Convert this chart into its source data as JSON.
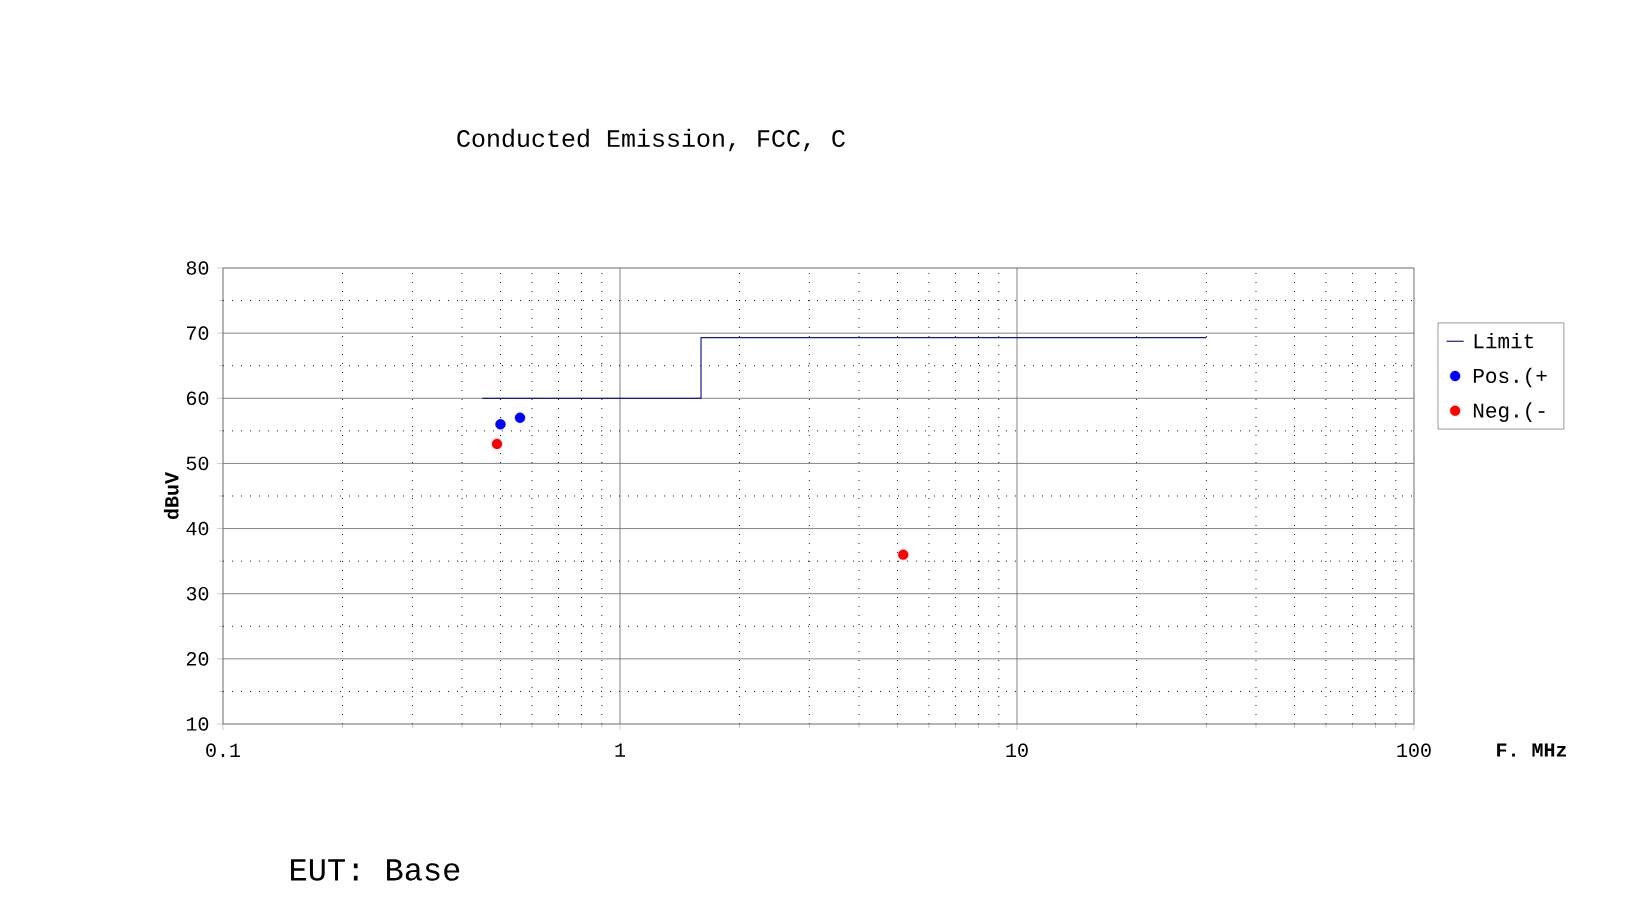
{
  "chart_data": {
    "type": "scatter",
    "title": "Conducted Emission, FCC, C",
    "xlabel": "F. MHz",
    "ylabel": "dBuV",
    "annotations": [
      "EUT: Base"
    ],
    "series": [
      {
        "name": "Limit",
        "type": "step",
        "color": "#1a1a8c",
        "x": [
          0.45,
          1.6,
          30
        ],
        "values": [
          60,
          69.3,
          69.3
        ],
        "marker": "none",
        "line_style": "solid"
      },
      {
        "name": "Pos.(+",
        "color": "#0000ff",
        "x": [
          0.5,
          0.56
        ],
        "values": [
          56,
          57
        ],
        "marker": "circle"
      },
      {
        "name": "Neg.(-",
        "color": "#ff0000",
        "x": [
          0.49,
          5.17
        ],
        "values": [
          53,
          36
        ],
        "marker": "circle"
      }
    ],
    "log": "x",
    "xlim": [
      0.1,
      100
    ],
    "xticks": [
      0.1,
      1,
      10,
      100
    ],
    "ylim": [
      10,
      80
    ],
    "yticks": [
      10,
      20,
      30,
      40,
      50,
      60,
      70,
      80
    ],
    "grid": true,
    "legend": "right"
  }
}
